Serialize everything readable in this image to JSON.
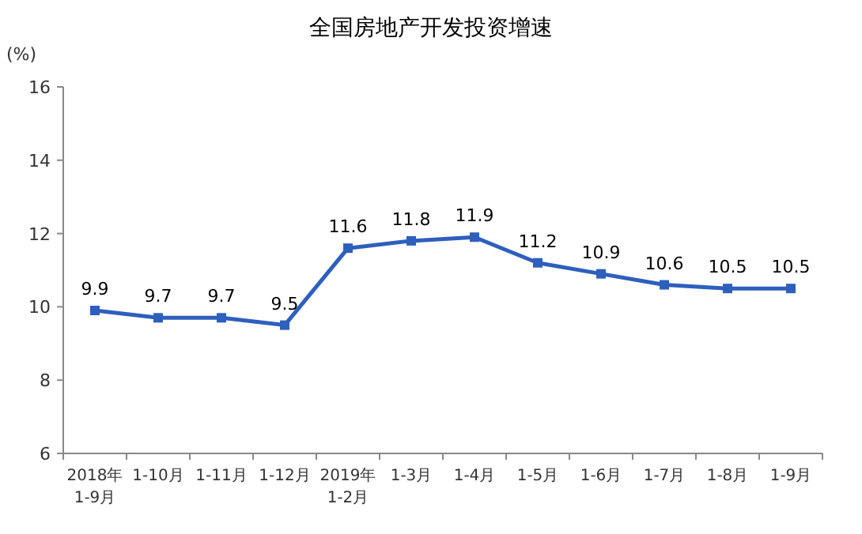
{
  "chart_data": {
    "type": "line",
    "title": "全国房地产开发投资增速",
    "ylabel": "(%)",
    "categories": [
      "2018年\n1-9月",
      "1-10月",
      "1-11月",
      "1-12月",
      "2019年\n1-2月",
      "1-3月",
      "1-4月",
      "1-5月",
      "1-6月",
      "1-7月",
      "1-8月",
      "1-9月"
    ],
    "series": [
      {
        "color": "#2e5fbd",
        "values": [
          9.9,
          9.7,
          9.7,
          9.5,
          11.6,
          11.8,
          11.9,
          11.2,
          10.9,
          10.6,
          10.5,
          10.5
        ]
      }
    ],
    "ylim": [
      6,
      16
    ],
    "yticks": [
      6,
      8,
      10,
      12,
      14,
      16
    ],
    "marker": "square",
    "line_style": "solid",
    "data_labels": true,
    "grid": false
  }
}
